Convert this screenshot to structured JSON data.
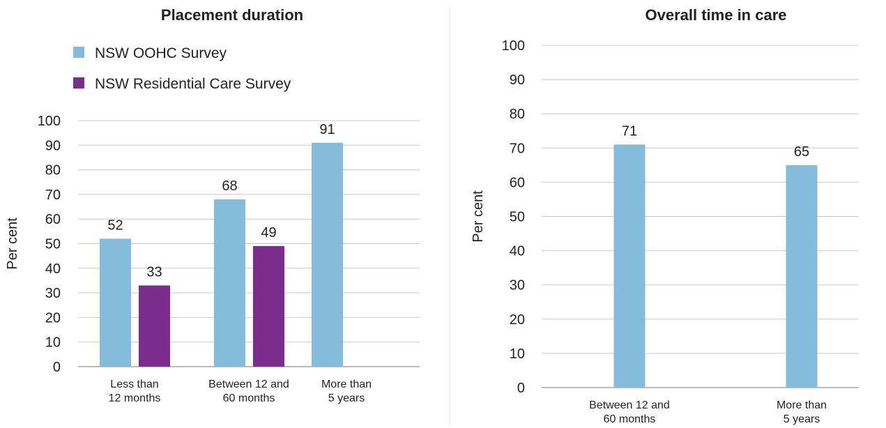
{
  "chart_data": [
    {
      "type": "bar",
      "title": "Placement duration",
      "ylabel": "Per cent",
      "xlabel": "",
      "ylim": [
        0,
        100
      ],
      "yticks": [
        0,
        10,
        20,
        30,
        40,
        50,
        60,
        70,
        80,
        90,
        100
      ],
      "grid": true,
      "legend_position": "top",
      "categories": [
        [
          "Less than",
          "12 months"
        ],
        [
          "Between 12 and",
          "60 months"
        ],
        [
          "More than",
          "5 years"
        ]
      ],
      "series": [
        {
          "name": "NSW OOHC Survey",
          "color": "#85bcdc",
          "values": [
            52,
            68,
            91
          ]
        },
        {
          "name": "NSW Residential Care Survey",
          "color": "#7b2d8e",
          "values": [
            33,
            49,
            null
          ]
        }
      ]
    },
    {
      "type": "bar",
      "title": "Overall time in care",
      "ylabel": "Per cent",
      "xlabel": "",
      "ylim": [
        0,
        100
      ],
      "yticks": [
        0,
        10,
        20,
        30,
        40,
        50,
        60,
        70,
        80,
        90,
        100
      ],
      "grid": true,
      "categories": [
        [
          "Between 12 and",
          "60 months"
        ],
        [
          "More than",
          "5 years"
        ]
      ],
      "series": [
        {
          "color": "#85bcdc",
          "values": [
            71,
            65
          ]
        }
      ]
    }
  ]
}
